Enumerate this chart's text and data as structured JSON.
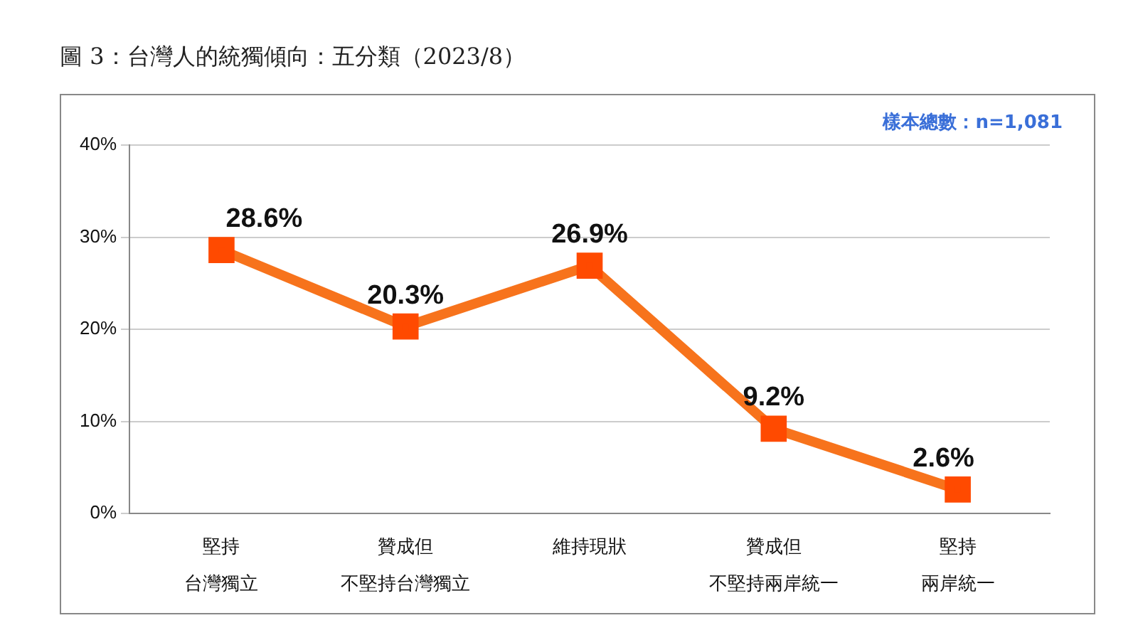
{
  "chart_data": {
    "type": "line",
    "title": "圖 3：台灣人的統獨傾向：五分類（2023/8）",
    "annotations": [
      "樣本總數：n=1,081"
    ],
    "categories": [
      "堅持台灣獨立",
      "贊成但不堅持台灣獨立",
      "維持現狀",
      "贊成但不堅持兩岸統一",
      "堅持兩岸統一"
    ],
    "series": [
      {
        "color": "#f7731c",
        "values": [
          28.6,
          20.3,
          26.9,
          9.2,
          2.6
        ],
        "value_labels": [
          "28.6%",
          "20.3%",
          "26.9%",
          "9.2%",
          "2.6%"
        ]
      }
    ],
    "ylim": [
      0,
      40
    ],
    "yticks": [
      {
        "value": 0,
        "label": "0%"
      },
      {
        "value": 10,
        "label": "10%"
      },
      {
        "value": 20,
        "label": "20%"
      },
      {
        "value": 30,
        "label": "30%"
      },
      {
        "value": 40,
        "label": "40%"
      }
    ],
    "grid": "y",
    "legend": false,
    "marker": "square",
    "line_style": "solid"
  }
}
